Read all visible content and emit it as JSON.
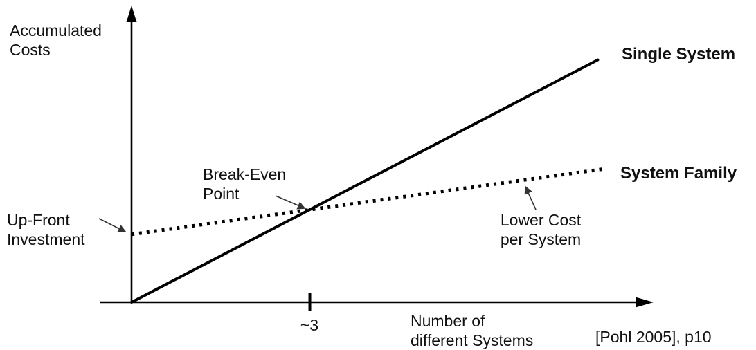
{
  "chart_data": {
    "type": "line",
    "title": "",
    "xlabel": "Number of\ndifferent Systems",
    "ylabel": "Accumulated\nCosts",
    "x_range": [
      0,
      10.2
    ],
    "y_range": [
      0,
      11
    ],
    "grid": false,
    "legend_position": "inline-right",
    "x_tick_labels": [
      "~3"
    ],
    "series": [
      {
        "name": "Single System",
        "style": "solid",
        "points": [
          [
            0,
            0
          ],
          [
            9.1,
            9.1
          ]
        ]
      },
      {
        "name": "System Family",
        "style": "dotted",
        "points": [
          [
            0,
            2.55
          ],
          [
            9.2,
            5.0
          ]
        ]
      }
    ],
    "break_even": {
      "x": 3.48,
      "y": 3.48,
      "tick_label": "~3"
    },
    "annotations": [
      "Break-Even Point",
      "Up-Front Investment",
      "Lower Cost per System"
    ]
  },
  "labels": {
    "y_axis": "Accumulated\nCosts",
    "x_axis": "Number of\ndifferent Systems",
    "single_system": "Single System",
    "system_family": "System Family",
    "break_even": "Break-Even\nPoint",
    "up_front": "Up-Front\nInvestment",
    "lower_cost": "Lower Cost\nper System",
    "tick": "~3",
    "citation": "[Pohl 2005], p10"
  },
  "colors": {
    "line": "#000000",
    "text": "#111111",
    "background": "#ffffff"
  }
}
